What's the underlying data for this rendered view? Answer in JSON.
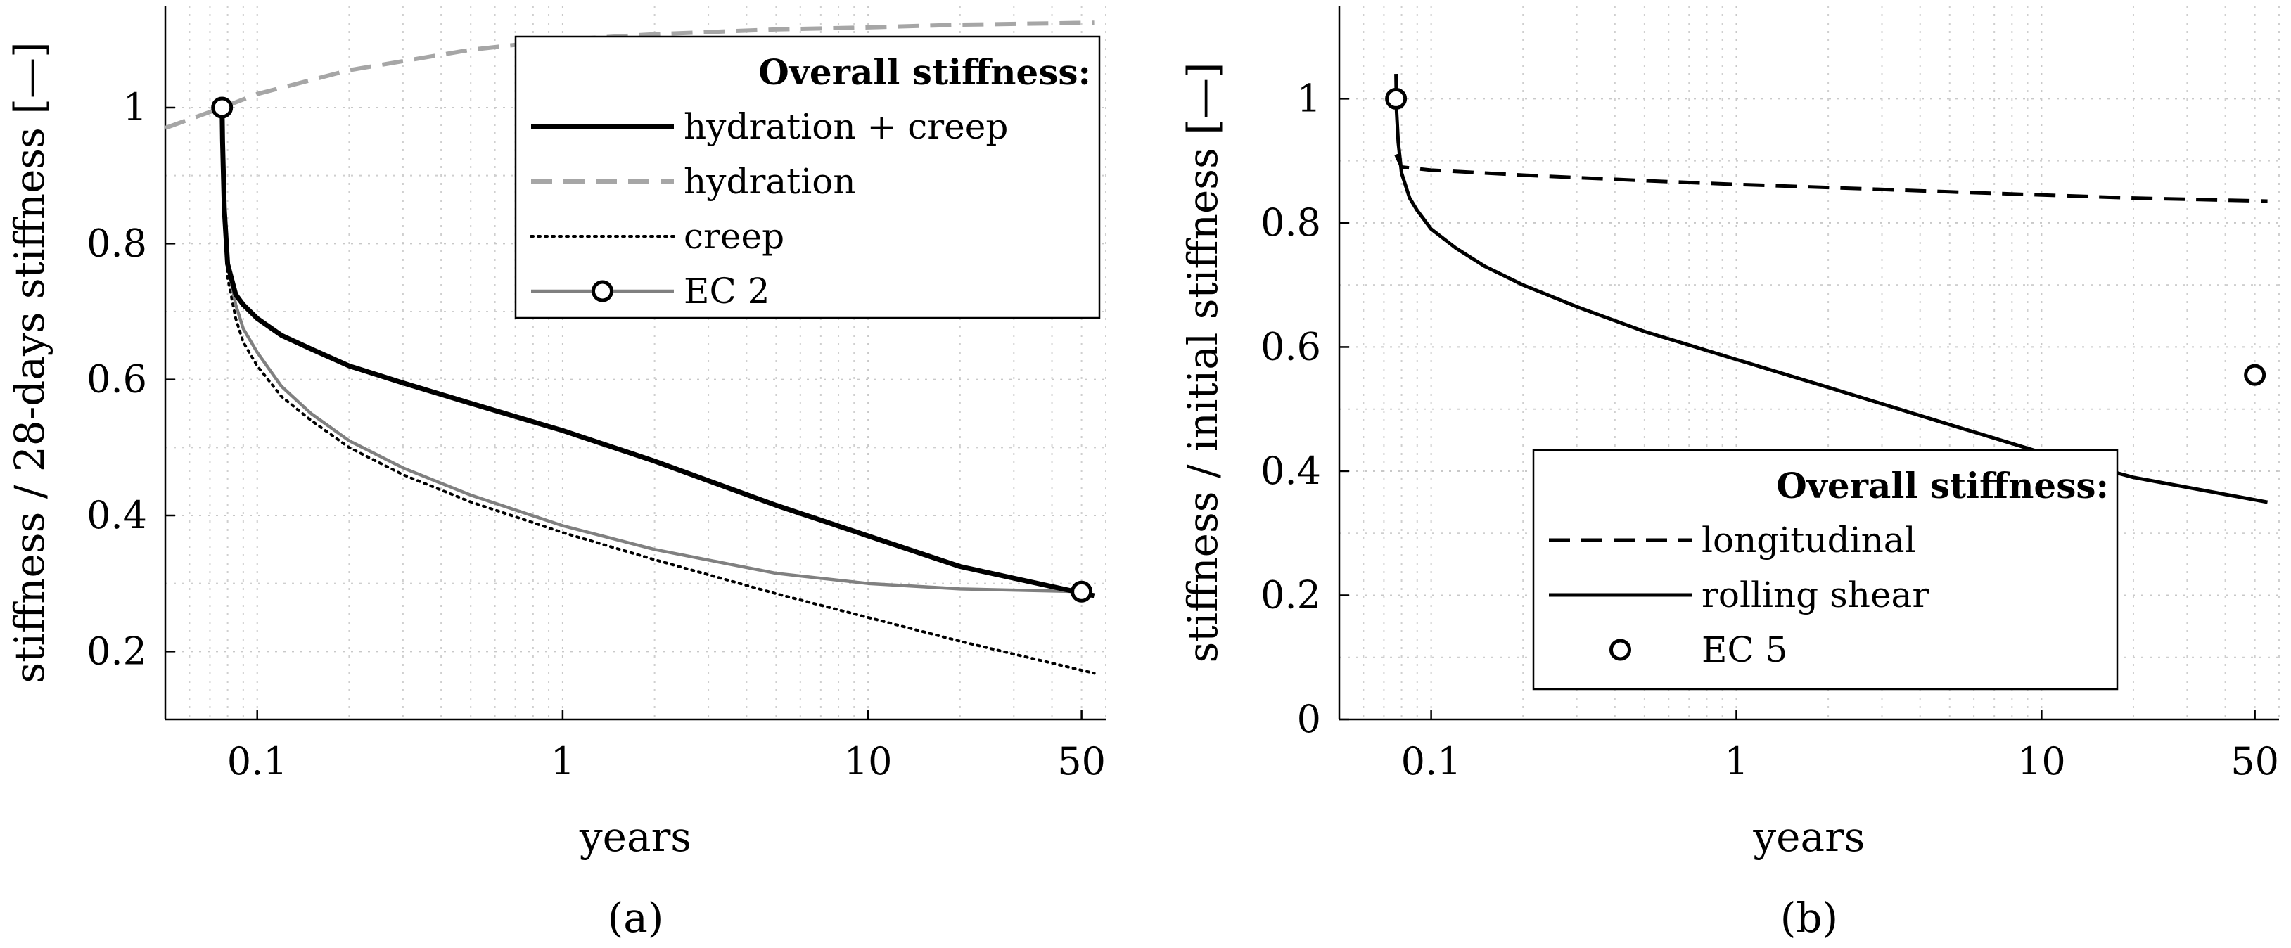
{
  "chart_data": [
    {
      "id": "a",
      "type": "line",
      "caption": "(a)",
      "xlabel": "years",
      "ylabel": "stiffness / 28-days stiffness [—]",
      "xscale": "log",
      "xlim": [
        0.05,
        60
      ],
      "ylim": [
        0.1,
        1.15
      ],
      "xticks": [
        0.1,
        1,
        10,
        50
      ],
      "xtick_labels": [
        "0.1",
        "1",
        "10",
        "50"
      ],
      "yticks": [
        0.2,
        0.4,
        0.6,
        0.8,
        1
      ],
      "ytick_labels": [
        "0.2",
        "0.4",
        "0.6",
        "0.8",
        "1"
      ],
      "grid": true,
      "legend": {
        "title": "Overall stiffness:",
        "position": "top-right",
        "entries": [
          {
            "label": "hydration + creep",
            "series": "hydration_creep"
          },
          {
            "label": "hydration",
            "series": "hydration"
          },
          {
            "label": "creep",
            "series": "creep"
          },
          {
            "label": "EC 2",
            "series": "ec2"
          }
        ]
      },
      "series": [
        {
          "key": "hydration",
          "name": "hydration",
          "style": "dashed",
          "color": "#a6a6a6",
          "x": [
            0.05,
            0.0767,
            0.1,
            0.2,
            0.5,
            1,
            2,
            5,
            10,
            20,
            55
          ],
          "y": [
            0.97,
            1.0,
            1.02,
            1.055,
            1.085,
            1.1,
            1.108,
            1.115,
            1.118,
            1.122,
            1.125
          ]
        },
        {
          "key": "creep",
          "name": "creep",
          "style": "dotted",
          "color": "#000000",
          "x": [
            0.0767,
            0.078,
            0.08,
            0.085,
            0.09,
            0.1,
            0.12,
            0.15,
            0.2,
            0.3,
            0.5,
            1,
            2,
            5,
            10,
            20,
            55
          ],
          "y": [
            1.0,
            0.85,
            0.75,
            0.69,
            0.655,
            0.62,
            0.575,
            0.54,
            0.5,
            0.46,
            0.42,
            0.375,
            0.335,
            0.285,
            0.25,
            0.215,
            0.168
          ]
        },
        {
          "key": "ec2",
          "name": "EC 2",
          "style": "solid",
          "color": "#808080",
          "markers_at_ends": true,
          "x": [
            0.0767,
            0.078,
            0.08,
            0.085,
            0.09,
            0.1,
            0.12,
            0.15,
            0.2,
            0.3,
            0.5,
            1,
            2,
            5,
            10,
            20,
            50
          ],
          "y": [
            1.0,
            0.86,
            0.77,
            0.71,
            0.675,
            0.64,
            0.59,
            0.55,
            0.51,
            0.47,
            0.43,
            0.385,
            0.35,
            0.315,
            0.3,
            0.292,
            0.288
          ]
        },
        {
          "key": "hydration_creep",
          "name": "hydration + creep",
          "style": "solid",
          "color": "#000000",
          "x": [
            0.0767,
            0.077,
            0.078,
            0.08,
            0.085,
            0.09,
            0.1,
            0.12,
            0.15,
            0.2,
            0.3,
            0.5,
            1,
            2,
            5,
            10,
            20,
            55
          ],
          "y": [
            1.0,
            0.95,
            0.85,
            0.77,
            0.725,
            0.71,
            0.69,
            0.665,
            0.645,
            0.62,
            0.595,
            0.565,
            0.525,
            0.48,
            0.415,
            0.37,
            0.325,
            0.282
          ]
        }
      ],
      "markers": [
        {
          "x": 0.0767,
          "y": 1.0
        },
        {
          "x": 50,
          "y": 0.288
        }
      ]
    },
    {
      "id": "b",
      "type": "line",
      "caption": "(b)",
      "xlabel": "years",
      "ylabel": "stiffness / initial stiffness [—]",
      "xscale": "log",
      "xlim": [
        0.05,
        60
      ],
      "ylim": [
        0,
        1.15
      ],
      "xticks": [
        0.1,
        1,
        10,
        50
      ],
      "xtick_labels": [
        "0.1",
        "1",
        "10",
        "50"
      ],
      "yticks": [
        0,
        0.2,
        0.4,
        0.6,
        0.8,
        1
      ],
      "ytick_labels": [
        "0",
        "0.2",
        "0.4",
        "0.6",
        "0.8",
        "1"
      ],
      "grid": true,
      "legend": {
        "title": "Overall stiffness:",
        "position": "bottom-right",
        "entries": [
          {
            "label": "longitudinal",
            "series": "longitudinal"
          },
          {
            "label": "rolling shear",
            "series": "rolling_shear"
          },
          {
            "label": "EC 5",
            "series": "ec5"
          }
        ]
      },
      "series": [
        {
          "key": "longitudinal",
          "name": "longitudinal",
          "style": "dashed",
          "color": "#000000",
          "x": [
            0.0767,
            0.08,
            0.1,
            0.2,
            0.5,
            1,
            2,
            5,
            10,
            20,
            55
          ],
          "y": [
            0.91,
            0.89,
            0.885,
            0.877,
            0.868,
            0.862,
            0.857,
            0.85,
            0.845,
            0.84,
            0.835
          ]
        },
        {
          "key": "rolling_shear",
          "name": "rolling shear",
          "style": "solid",
          "color": "#000000",
          "x": [
            0.0767,
            0.077,
            0.078,
            0.08,
            0.085,
            0.09,
            0.1,
            0.12,
            0.15,
            0.2,
            0.3,
            0.5,
            1,
            2,
            5,
            10,
            20,
            55
          ],
          "y": [
            1.04,
            0.98,
            0.93,
            0.88,
            0.84,
            0.82,
            0.79,
            0.76,
            0.73,
            0.7,
            0.665,
            0.625,
            0.58,
            0.535,
            0.475,
            0.43,
            0.39,
            0.35
          ]
        }
      ],
      "markers": [
        {
          "x": 0.0767,
          "y": 1.0
        },
        {
          "x": 50,
          "y": 0.555
        }
      ]
    }
  ]
}
